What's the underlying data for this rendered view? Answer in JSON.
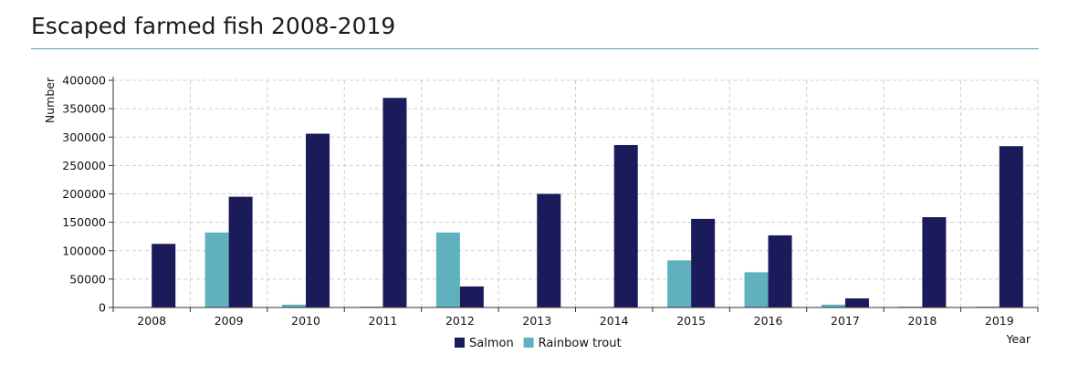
{
  "page": {
    "title": "Escaped farmed fish 2008-2019"
  },
  "chart_data": {
    "type": "bar",
    "title": "Escaped farmed fish 2008-2019",
    "xlabel": "Year",
    "ylabel": "Number",
    "categories": [
      "2008",
      "2009",
      "2010",
      "2011",
      "2012",
      "2013",
      "2014",
      "2015",
      "2016",
      "2017",
      "2018",
      "2019"
    ],
    "series": [
      {
        "name": "Salmon",
        "color": "#1b1b5b",
        "values": [
          112000,
          195000,
          306000,
          369000,
          37000,
          200000,
          286000,
          156000,
          127000,
          16000,
          159000,
          284000
        ]
      },
      {
        "name": "Rainbow trout",
        "color": "#5fb1bd",
        "values": [
          0,
          132000,
          5000,
          1500,
          132000,
          0,
          500,
          83000,
          62000,
          5000,
          1500,
          1500
        ]
      }
    ],
    "ylim": [
      0,
      400000
    ],
    "yticks": [
      0,
      50000,
      100000,
      150000,
      200000,
      250000,
      300000,
      350000,
      400000
    ],
    "grid": true,
    "legend_position": "bottom"
  }
}
